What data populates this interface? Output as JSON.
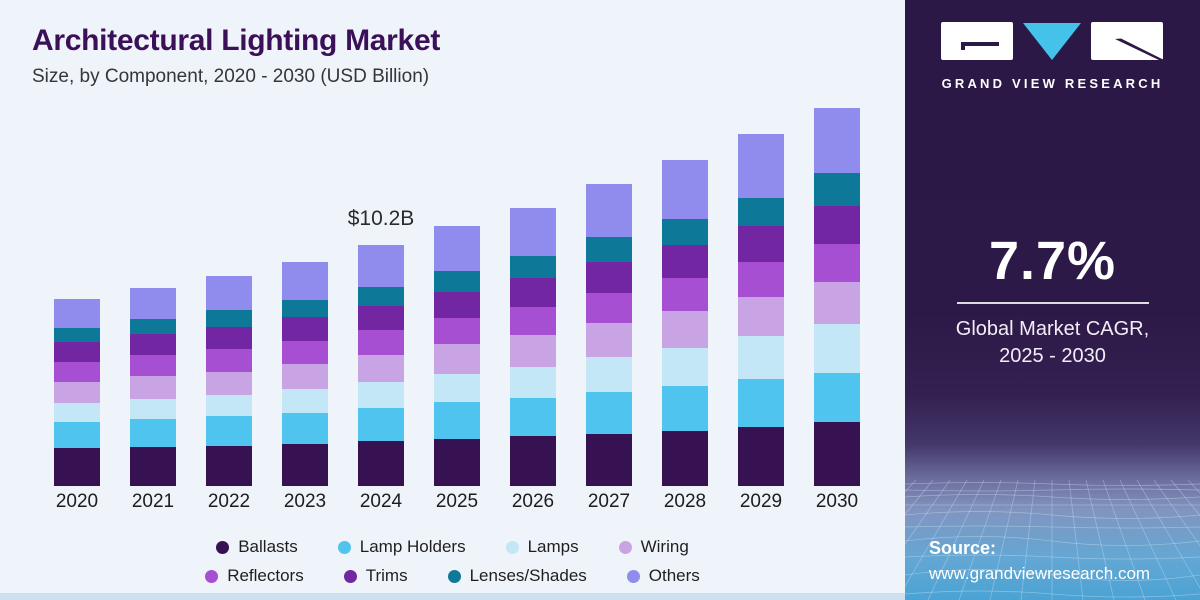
{
  "header": {
    "title": "Architectural Lighting Market",
    "subtitle": "Size, by Component, 2020 - 2030 (USD Billion)"
  },
  "chart_data": {
    "type": "bar",
    "stacked": true,
    "title": "Architectural Lighting Market Size, by Component, 2020 - 2030 (USD Billion)",
    "unit": "USD Billion",
    "categories": [
      "2020",
      "2021",
      "2022",
      "2023",
      "2024",
      "2025",
      "2026",
      "2027",
      "2028",
      "2029",
      "2030"
    ],
    "series": [
      {
        "name": "Ballasts",
        "color": "#371253",
        "values": [
          1.6,
          1.65,
          1.7,
          1.8,
          1.9,
          2.0,
          2.1,
          2.2,
          2.35,
          2.5,
          2.7
        ]
      },
      {
        "name": "Lamp Holders",
        "color": "#4fc4ee",
        "values": [
          1.1,
          1.2,
          1.25,
          1.3,
          1.4,
          1.55,
          1.65,
          1.8,
          1.9,
          2.05,
          2.1
        ]
      },
      {
        "name": "Lamps",
        "color": "#c3e7f7",
        "values": [
          0.8,
          0.85,
          0.9,
          1.0,
          1.1,
          1.2,
          1.3,
          1.45,
          1.6,
          1.8,
          2.05
        ]
      },
      {
        "name": "Wiring",
        "color": "#c9a4e4",
        "values": [
          0.9,
          0.95,
          1.0,
          1.05,
          1.15,
          1.25,
          1.35,
          1.45,
          1.55,
          1.65,
          1.8
        ]
      },
      {
        "name": "Reflectors",
        "color": "#a74fd3",
        "values": [
          0.85,
          0.9,
          0.95,
          1.0,
          1.05,
          1.1,
          1.2,
          1.3,
          1.4,
          1.5,
          1.6
        ]
      },
      {
        "name": "Trims",
        "color": "#7226a2",
        "values": [
          0.85,
          0.9,
          0.95,
          1.0,
          1.05,
          1.1,
          1.2,
          1.3,
          1.4,
          1.5,
          1.6
        ]
      },
      {
        "name": "Lenses/Shades",
        "color": "#0e7898",
        "values": [
          0.6,
          0.65,
          0.7,
          0.75,
          0.8,
          0.9,
          0.95,
          1.05,
          1.1,
          1.2,
          1.4
        ]
      },
      {
        "name": "Others",
        "color": "#8f8cee",
        "values": [
          1.2,
          1.3,
          1.45,
          1.6,
          1.75,
          1.9,
          2.05,
          2.25,
          2.5,
          2.7,
          2.75
        ]
      }
    ],
    "totals": [
      7.9,
      8.4,
      8.9,
      9.5,
      10.2,
      11.0,
      11.8,
      12.8,
      13.8,
      14.9,
      16.0
    ],
    "annotation": {
      "category": "2024",
      "text": "$10.2B"
    },
    "legend_position": "bottom",
    "legend_rows": [
      [
        "Ballasts",
        "Lamp Holders",
        "Lamps",
        "Wiring"
      ],
      [
        "Reflectors",
        "Trims",
        "Lenses/Shades",
        "Others"
      ]
    ],
    "axes": {
      "y_axis_visible": false,
      "gridlines": false
    }
  },
  "sidebar": {
    "brand_name": "GRAND VIEW RESEARCH",
    "cagr_value": "7.7%",
    "cagr_label_line1": "Global Market CAGR,",
    "cagr_label_line2": "2025 - 2030",
    "source_label": "Source:",
    "source_url": "www.grandviewresearch.com"
  },
  "colors": {
    "panel_background": "#eff4fa",
    "title_text": "#3b1058",
    "sidebar_top": "#2d1947",
    "sidebar_bottom": "#4aa3d4",
    "logo_triangle": "#45c2ea",
    "logo_card": "#ffffff"
  }
}
